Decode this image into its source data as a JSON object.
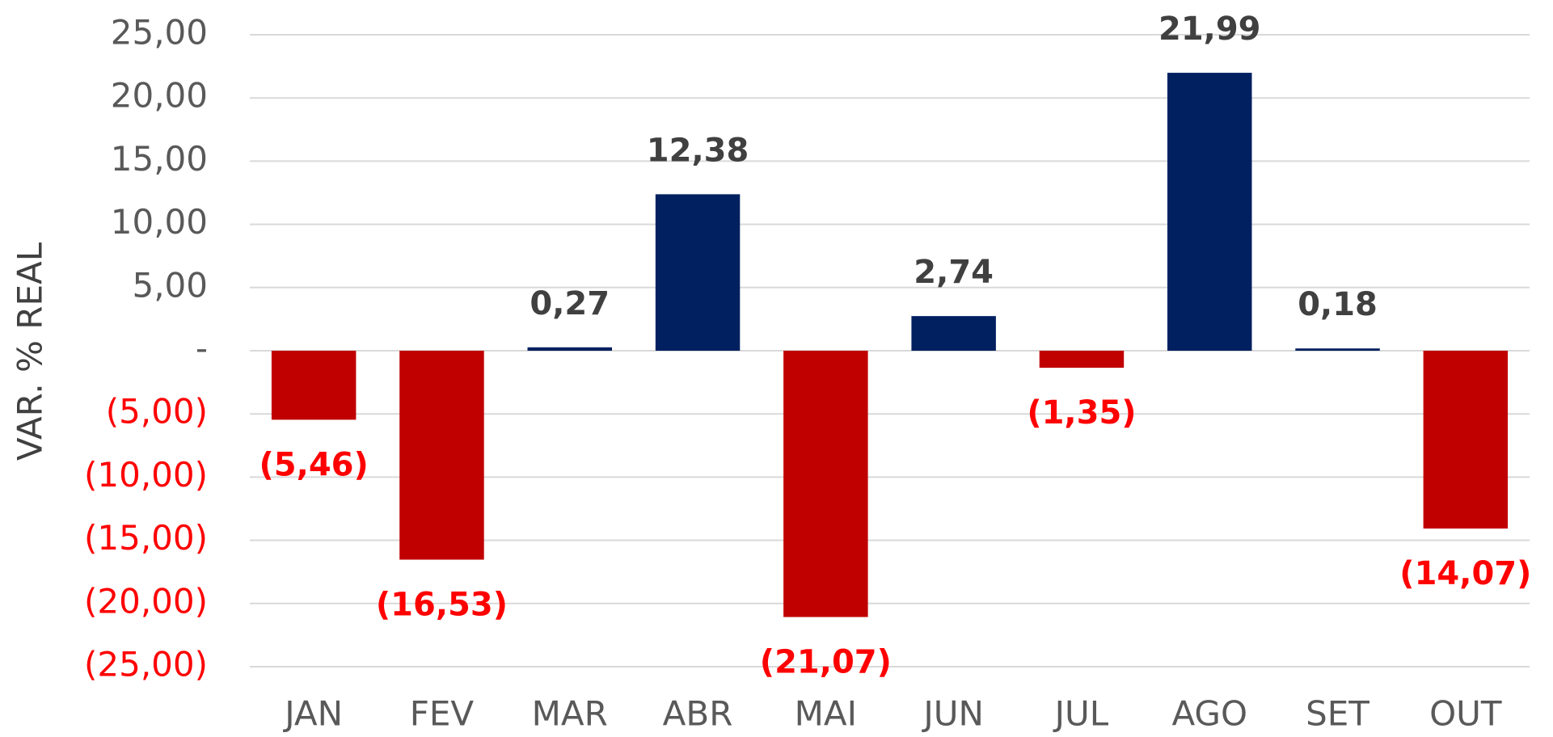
{
  "chart_data": {
    "type": "bar",
    "y_label": "VAR. % REAL",
    "categories": [
      "JAN",
      "FEV",
      "MAR",
      "ABR",
      "MAI",
      "JUN",
      "JUL",
      "AGO",
      "SET",
      "OUT"
    ],
    "values": [
      -5.46,
      -16.53,
      0.27,
      12.38,
      -21.07,
      2.74,
      -1.35,
      21.99,
      0.18,
      -14.07
    ],
    "value_labels": [
      "(5,46)",
      "(16,53)",
      "0,27",
      "12,38",
      "(21,07)",
      "2,74",
      "(1,35)",
      "21,99",
      "0,18",
      "(14,07)"
    ],
    "color": "#002060",
    "negative_color": "#c00000",
    "label_color": "#404040",
    "negative_label_color": "#ff0000",
    "tick_color": "#595959",
    "negative_tick_color": "#ff0000",
    "ylim": [
      -25,
      25
    ],
    "yticks": [
      {
        "value": 25,
        "label": "25,00"
      },
      {
        "value": 20,
        "label": "20,00"
      },
      {
        "value": 15,
        "label": "15,00"
      },
      {
        "value": 10,
        "label": "10,00"
      },
      {
        "value": 5,
        "label": "5,00"
      },
      {
        "value": 0,
        "label": "-"
      },
      {
        "value": -5,
        "label": "(5,00)"
      },
      {
        "value": -10,
        "label": "(10,00)"
      },
      {
        "value": -15,
        "label": "(15,00)"
      },
      {
        "value": -20,
        "label": "(20,00)"
      },
      {
        "value": -25,
        "label": "(25,00)"
      }
    ],
    "grid": true
  }
}
